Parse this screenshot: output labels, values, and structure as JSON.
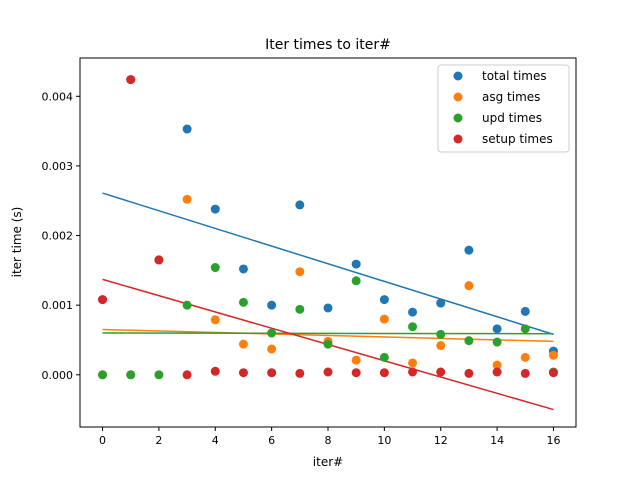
{
  "chart_data": {
    "type": "scatter",
    "title": "Iter times to iter#",
    "xlabel": "iter#",
    "ylabel": "iter time (s)",
    "xlim": [
      -0.8,
      16.8
    ],
    "ylim": [
      -0.00075,
      0.00455
    ],
    "xticks": [
      0,
      2,
      4,
      6,
      8,
      10,
      12,
      14,
      16
    ],
    "xtick_labels": [
      "0",
      "2",
      "4",
      "6",
      "8",
      "10",
      "12",
      "14",
      "16"
    ],
    "yticks": [
      0,
      0.001,
      0.002,
      0.003,
      0.004
    ],
    "ytick_labels": [
      "0.000",
      "0.001",
      "0.002",
      "0.003",
      "0.004"
    ],
    "legend_position": "top-right",
    "series": [
      {
        "name": "total times",
        "color": "#1f77b4",
        "x": [
          0,
          1,
          2,
          3,
          4,
          5,
          6,
          7,
          8,
          9,
          10,
          11,
          12,
          13,
          14,
          15,
          16
        ],
        "y": [
          0.00108,
          0.00424,
          0.00165,
          0.00353,
          0.00238,
          0.00152,
          0.001,
          0.00244,
          0.00096,
          0.00159,
          0.00108,
          0.0009,
          0.00103,
          0.00179,
          0.00066,
          0.00091,
          0.00034
        ],
        "fit": [
          0.00261,
          0.00058
        ]
      },
      {
        "name": "asg times",
        "color": "#ff7f0e",
        "x": [
          0,
          1,
          2,
          3,
          4,
          5,
          6,
          7,
          8,
          9,
          10,
          11,
          12,
          13,
          14,
          15,
          16
        ],
        "y": [
          0.0,
          0.0,
          0.00165,
          0.00252,
          0.00079,
          0.00044,
          0.00037,
          0.00148,
          0.00048,
          0.00021,
          0.0008,
          0.00017,
          0.00042,
          0.00128,
          0.00014,
          0.00025,
          0.00028
        ],
        "fit": [
          0.00065,
          0.00048
        ]
      },
      {
        "name": "upd times",
        "color": "#2ca02c",
        "x": [
          0,
          1,
          2,
          3,
          4,
          5,
          6,
          7,
          8,
          9,
          10,
          11,
          12,
          13,
          14,
          15,
          16
        ],
        "y": [
          0.0,
          0.0,
          0.0,
          0.001,
          0.00154,
          0.00104,
          0.0006,
          0.00094,
          0.00044,
          0.00135,
          0.00025,
          0.00069,
          0.00058,
          0.00049,
          0.00047,
          0.00066,
          4e-05
        ],
        "fit": [
          0.0006,
          0.00059
        ]
      },
      {
        "name": "setup times",
        "color": "#d62728",
        "x": [
          0,
          1,
          2,
          3,
          4,
          5,
          6,
          7,
          8,
          9,
          10,
          11,
          12,
          13,
          14,
          15,
          16
        ],
        "y": [
          0.00108,
          0.00424,
          0.00165,
          0.0,
          5e-05,
          3e-05,
          3e-05,
          2e-05,
          4e-05,
          3e-05,
          3e-05,
          4e-05,
          4e-05,
          2e-05,
          4e-05,
          2e-05,
          3e-05
        ],
        "fit": [
          0.00137,
          -0.0005
        ]
      }
    ]
  }
}
